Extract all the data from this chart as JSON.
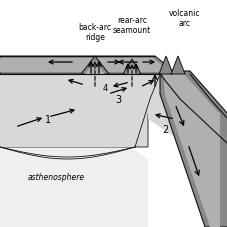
{
  "bg_color": "#ffffff",
  "dark_gray": "#888888",
  "med_gray": "#b0b0b0",
  "light_gray": "#d8d8d8",
  "very_light_gray": "#efefef",
  "dark_outline": "#111111",
  "labels": {
    "back_arc_ridge": "back-arc\nridge",
    "rear_arc_seamount": "rear-arc\nseamount",
    "volcanic_arc": "volcanic\narc",
    "asthenosphere": "asthenosphere",
    "label1": "1",
    "label2": "2",
    "label3": "3",
    "label4": "4"
  },
  "figsize": [
    2.28,
    2.28
  ],
  "dpi": 100
}
